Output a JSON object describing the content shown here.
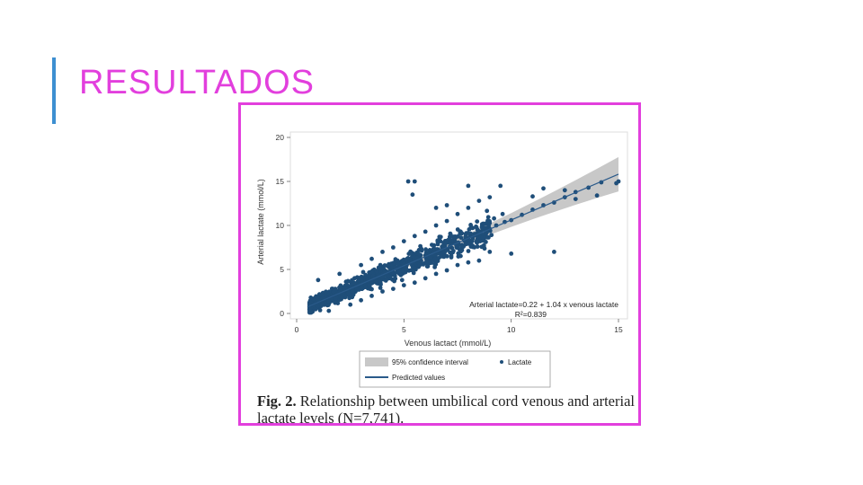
{
  "slide": {
    "title": "RESULTADOS"
  },
  "figure": {
    "caption_label": "Fig. 2.",
    "caption_text": " Relationship between umbilical cord venous and arterial lactate levels (N=7,741)."
  },
  "colors": {
    "title": "#e23fdd",
    "accent_bar": "#3d8fd1",
    "frame": "#e23fdd",
    "points": "#1f4e79",
    "ci_band": "#c8c8c8",
    "fit_line": "#2a5a8a"
  },
  "chart_data": {
    "type": "scatter",
    "xlabel": "Venous lactact (mmol/L)",
    "ylabel": "Arterial lactate (mmol/L)",
    "xlim": [
      0,
      15
    ],
    "ylim": [
      0,
      20
    ],
    "x_ticks": [
      "0",
      "5",
      "10",
      "15"
    ],
    "y_ticks": [
      "0",
      "5",
      "10",
      "15",
      "20"
    ],
    "grid": false,
    "annotation": {
      "equation": "Arterial lactate=0.22 + 1.04 x venous lactate",
      "r_squared": "R²=0.839"
    },
    "fit": {
      "intercept": 0.22,
      "slope": 1.04
    },
    "legend": {
      "position": "bottom",
      "entries": [
        {
          "label": "95% confidence interval",
          "kind": "band"
        },
        {
          "label": "Lactate",
          "kind": "point"
        },
        {
          "label": "Predicted values",
          "kind": "line"
        }
      ]
    },
    "series": [
      {
        "name": "Lactate",
        "points": [
          [
            0.6,
            0.5
          ],
          [
            0.8,
            0.9
          ],
          [
            1.0,
            1.2
          ],
          [
            1.2,
            1.0
          ],
          [
            1.3,
            1.6
          ],
          [
            1.5,
            1.4
          ],
          [
            1.6,
            2.0
          ],
          [
            1.8,
            1.7
          ],
          [
            2.0,
            2.2
          ],
          [
            2.1,
            1.8
          ],
          [
            2.2,
            2.6
          ],
          [
            2.4,
            2.3
          ],
          [
            2.5,
            2.9
          ],
          [
            2.6,
            2.5
          ],
          [
            2.8,
            3.1
          ],
          [
            2.9,
            2.7
          ],
          [
            3.0,
            3.3
          ],
          [
            3.2,
            3.0
          ],
          [
            3.3,
            3.7
          ],
          [
            3.4,
            3.2
          ],
          [
            3.6,
            4.0
          ],
          [
            3.7,
            3.6
          ],
          [
            3.8,
            4.3
          ],
          [
            4.0,
            4.1
          ],
          [
            4.1,
            4.6
          ],
          [
            4.2,
            3.9
          ],
          [
            4.4,
            4.9
          ],
          [
            4.5,
            4.5
          ],
          [
            4.6,
            5.2
          ],
          [
            4.8,
            4.8
          ],
          [
            5.0,
            5.6
          ],
          [
            5.1,
            5.0
          ],
          [
            5.3,
            5.9
          ],
          [
            5.5,
            5.7
          ],
          [
            5.6,
            6.3
          ],
          [
            5.8,
            6.0
          ],
          [
            6.0,
            6.6
          ],
          [
            6.2,
            6.4
          ],
          [
            6.4,
            7.0
          ],
          [
            6.6,
            6.8
          ],
          [
            6.8,
            7.4
          ],
          [
            7.0,
            7.2
          ],
          [
            7.2,
            7.9
          ],
          [
            7.5,
            7.7
          ],
          [
            7.8,
            8.3
          ],
          [
            8.0,
            8.6
          ],
          [
            8.3,
            8.9
          ],
          [
            8.6,
            9.2
          ],
          [
            9.0,
            9.6
          ],
          [
            9.3,
            10.0
          ],
          [
            9.7,
            10.4
          ],
          [
            10.0,
            10.6
          ],
          [
            10.5,
            11.2
          ],
          [
            11.0,
            11.8
          ],
          [
            11.5,
            12.3
          ],
          [
            12.0,
            12.6
          ],
          [
            12.5,
            13.2
          ],
          [
            13.0,
            13.8
          ],
          [
            13.6,
            14.3
          ],
          [
            14.2,
            14.9
          ],
          [
            15.0,
            15.0
          ],
          [
            14.9,
            14.8
          ],
          [
            1.0,
            3.8
          ],
          [
            2.0,
            4.5
          ],
          [
            3.0,
            5.5
          ],
          [
            3.5,
            6.2
          ],
          [
            4.0,
            7.0
          ],
          [
            4.5,
            7.5
          ],
          [
            5.0,
            8.2
          ],
          [
            5.5,
            8.8
          ],
          [
            6.0,
            9.3
          ],
          [
            6.5,
            10.0
          ],
          [
            7.0,
            10.5
          ],
          [
            7.5,
            11.3
          ],
          [
            8.0,
            12.0
          ],
          [
            8.5,
            12.8
          ],
          [
            9.0,
            13.2
          ],
          [
            5.2,
            15.0
          ],
          [
            5.5,
            15.0
          ],
          [
            5.4,
            13.5
          ],
          [
            6.5,
            12.0
          ],
          [
            7.0,
            12.3
          ],
          [
            8.0,
            14.5
          ],
          [
            9.5,
            14.5
          ],
          [
            11.0,
            13.3
          ],
          [
            11.5,
            14.2
          ],
          [
            12.5,
            14.0
          ],
          [
            13.0,
            13.0
          ],
          [
            14.0,
            13.4
          ],
          [
            10.0,
            6.8
          ],
          [
            12.0,
            7.0
          ],
          [
            1.5,
            0.3
          ],
          [
            2.5,
            1.0
          ],
          [
            3.5,
            2.0
          ],
          [
            4.5,
            2.8
          ],
          [
            5.5,
            3.5
          ],
          [
            6.5,
            4.5
          ],
          [
            7.5,
            5.5
          ],
          [
            8.5,
            6.0
          ],
          [
            9.0,
            7.0
          ],
          [
            3.0,
            1.5
          ],
          [
            4.0,
            2.5
          ],
          [
            5.0,
            3.2
          ],
          [
            6.0,
            4.0
          ],
          [
            7.0,
            4.9
          ],
          [
            8.0,
            5.8
          ],
          [
            1.8,
            2.8
          ],
          [
            2.3,
            3.6
          ],
          [
            2.7,
            4.0
          ],
          [
            3.1,
            4.7
          ],
          [
            3.9,
            5.1
          ],
          [
            4.3,
            5.6
          ],
          [
            4.7,
            6.0
          ],
          [
            5.3,
            6.8
          ],
          [
            5.7,
            7.2
          ],
          [
            6.3,
            7.8
          ],
          [
            6.7,
            8.2
          ],
          [
            7.3,
            8.7
          ],
          [
            7.7,
            9.1
          ],
          [
            8.2,
            9.7
          ],
          [
            8.7,
            10.2
          ],
          [
            9.2,
            10.8
          ],
          [
            9.6,
            11.3
          ]
        ]
      }
    ]
  }
}
